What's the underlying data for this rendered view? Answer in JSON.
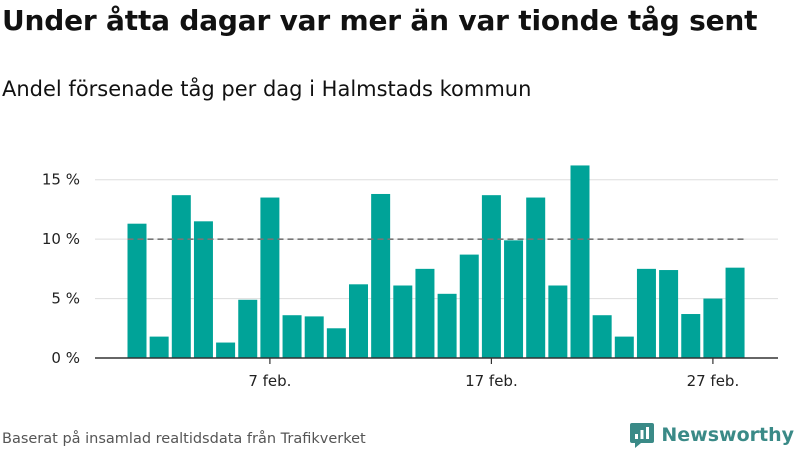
{
  "header": {
    "title": "Under åtta dagar var mer än var tionde tåg sent",
    "subtitle": "Andel försenade tåg per dag i Halmstads kommun"
  },
  "footer": {
    "source": "Baserat på insamlad realtidsdata från Trafikverket",
    "brand": "Newsworthy"
  },
  "colors": {
    "bar": "#00a398",
    "reference_line": "#777777",
    "grid": "#dddddd",
    "axis": "#333333",
    "brand": "#3a8a87"
  },
  "chart_data": {
    "type": "bar",
    "title": "Under åtta dagar var mer än var tionde tåg sent",
    "subtitle": "Andel försenade tåg per dag i Halmstads kommun",
    "unit": "%",
    "categories": [
      "1",
      "2",
      "3",
      "4",
      "5",
      "6",
      "7",
      "8",
      "9",
      "10",
      "11",
      "12",
      "13",
      "14",
      "15",
      "16",
      "17",
      "18",
      "19",
      "20",
      "21",
      "22",
      "23",
      "24",
      "25",
      "26",
      "27",
      "28"
    ],
    "values": [
      11.3,
      1.8,
      13.7,
      11.5,
      1.3,
      4.9,
      13.5,
      3.6,
      3.5,
      2.5,
      6.2,
      13.8,
      6.1,
      7.5,
      5.4,
      8.7,
      13.7,
      9.9,
      13.5,
      6.1,
      16.2,
      3.6,
      1.8,
      7.5,
      7.4,
      3.7,
      5.0,
      7.6
    ],
    "x_ticks": [
      {
        "index": 6,
        "label": "7 feb."
      },
      {
        "index": 16,
        "label": "17 feb."
      },
      {
        "index": 26,
        "label": "27 feb."
      }
    ],
    "y_ticks": [
      {
        "value": 0,
        "label": "0 %"
      },
      {
        "value": 5,
        "label": "5 %"
      },
      {
        "value": 10,
        "label": "10 %"
      },
      {
        "value": 15,
        "label": "15 %"
      }
    ],
    "ylim": [
      0,
      17.5
    ],
    "reference_line": {
      "value": 10,
      "style": "dashed"
    },
    "grid": "horizontal",
    "legend": "none"
  }
}
